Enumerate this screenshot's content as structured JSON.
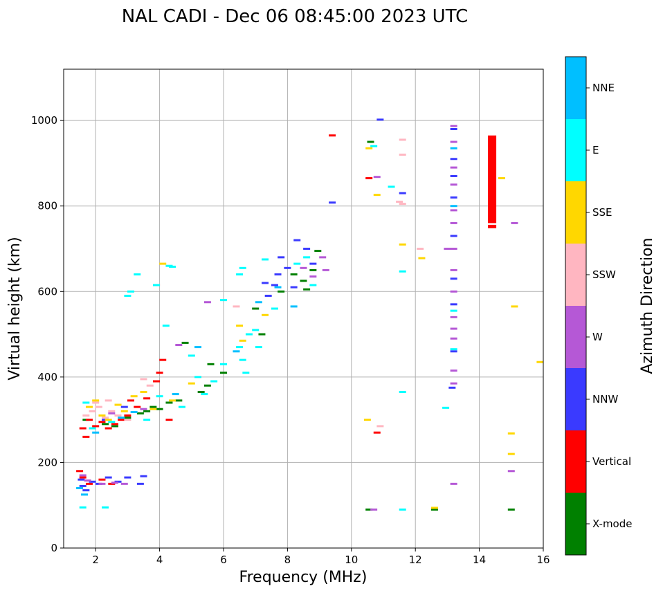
{
  "chart_data": {
    "type": "scatter",
    "title": "NAL CADI - Dec 06 08:45:00 2023 UTC",
    "xlabel": "Frequency (MHz)",
    "ylabel": "Virtual height (km)",
    "xlim": [
      1,
      16
    ],
    "ylim": [
      0,
      1120
    ],
    "xticks": [
      2,
      4,
      6,
      8,
      10,
      12,
      14,
      16
    ],
    "yticks": [
      0,
      200,
      400,
      600,
      800,
      1000
    ],
    "grid": true,
    "colorbar": {
      "title": "Azimuth Direction",
      "categories": [
        "X-mode",
        "Vertical",
        "NNW",
        "W",
        "SSW",
        "SSE",
        "E",
        "NNE"
      ],
      "colors": [
        "#008000",
        "#ff0000",
        "#3a3aff",
        "#b558d6",
        "#ffb6c1",
        "#ffd700",
        "#00ffff",
        "#00bfff"
      ]
    },
    "series": [
      {
        "name": "X-mode",
        "points": [
          [
            1.7,
            300
          ],
          [
            2.3,
            290
          ],
          [
            3.0,
            305
          ],
          [
            3.6,
            320
          ],
          [
            3.8,
            330
          ],
          [
            4.0,
            325
          ],
          [
            4.3,
            340
          ],
          [
            5.3,
            365
          ],
          [
            5.5,
            380
          ],
          [
            6.0,
            410
          ],
          [
            5.6,
            430
          ],
          [
            4.8,
            480
          ],
          [
            7.8,
            600
          ],
          [
            8.5,
            625
          ],
          [
            8.8,
            650
          ],
          [
            8.95,
            695
          ],
          [
            8.6,
            605
          ],
          [
            8.2,
            640
          ],
          [
            10.6,
            950
          ],
          [
            10.55,
            90
          ],
          [
            12.6,
            90
          ],
          [
            15.0,
            90
          ],
          [
            4.6,
            345
          ],
          [
            3.4,
            315
          ],
          [
            2.6,
            285
          ],
          [
            7.2,
            500
          ],
          [
            7.0,
            560
          ]
        ]
      },
      {
        "name": "Vertical",
        "points": [
          [
            1.6,
            280
          ],
          [
            1.8,
            300
          ],
          [
            2.0,
            285
          ],
          [
            2.2,
            295
          ],
          [
            2.4,
            280
          ],
          [
            2.6,
            290
          ],
          [
            3.0,
            310
          ],
          [
            3.3,
            330
          ],
          [
            3.6,
            350
          ],
          [
            3.9,
            390
          ],
          [
            4.1,
            440
          ],
          [
            4.0,
            410
          ],
          [
            4.3,
            300
          ],
          [
            1.5,
            180
          ],
          [
            1.6,
            165
          ],
          [
            1.8,
            150
          ],
          [
            2.2,
            160
          ],
          [
            2.5,
            150
          ],
          [
            9.4,
            965
          ],
          [
            10.55,
            865
          ],
          [
            10.8,
            270
          ],
          [
            2.8,
            300
          ],
          [
            3.1,
            345
          ],
          [
            1.7,
            260
          ]
        ]
      },
      {
        "name": "NNW",
        "points": [
          [
            1.55,
            160
          ],
          [
            1.6,
            145
          ],
          [
            1.7,
            135
          ],
          [
            1.9,
            155
          ],
          [
            2.1,
            150
          ],
          [
            2.4,
            165
          ],
          [
            2.7,
            155
          ],
          [
            3.0,
            165
          ],
          [
            3.5,
            168
          ],
          [
            3.4,
            150
          ],
          [
            7.4,
            590
          ],
          [
            7.6,
            615
          ],
          [
            7.7,
            640
          ],
          [
            7.8,
            680
          ],
          [
            8.0,
            655
          ],
          [
            8.3,
            720
          ],
          [
            8.6,
            700
          ],
          [
            8.8,
            665
          ],
          [
            8.2,
            610
          ],
          [
            9.4,
            808
          ],
          [
            10.9,
            1002
          ],
          [
            13.2,
            980
          ],
          [
            13.2,
            910
          ],
          [
            13.2,
            870
          ],
          [
            13.2,
            820
          ],
          [
            13.2,
            730
          ],
          [
            13.2,
            630
          ],
          [
            13.2,
            570
          ],
          [
            13.2,
            460
          ],
          [
            13.15,
            375
          ],
          [
            11.6,
            830
          ],
          [
            2.3,
            300
          ],
          [
            2.9,
            330
          ],
          [
            7.3,
            620
          ]
        ]
      },
      {
        "name": "W",
        "points": [
          [
            1.6,
            170
          ],
          [
            1.75,
            158
          ],
          [
            2.2,
            150
          ],
          [
            2.6,
            153
          ],
          [
            2.9,
            150
          ],
          [
            4.6,
            475
          ],
          [
            8.5,
            655
          ],
          [
            8.8,
            635
          ],
          [
            9.1,
            680
          ],
          [
            9.2,
            650
          ],
          [
            10.8,
            868
          ],
          [
            10.7,
            90
          ],
          [
            13.2,
            987
          ],
          [
            13.2,
            950
          ],
          [
            13.2,
            890
          ],
          [
            13.2,
            850
          ],
          [
            13.2,
            790
          ],
          [
            13.2,
            760
          ],
          [
            13.2,
            700
          ],
          [
            13.2,
            650
          ],
          [
            13.2,
            600
          ],
          [
            13.2,
            540
          ],
          [
            13.2,
            513
          ],
          [
            13.2,
            490
          ],
          [
            13.2,
            415
          ],
          [
            13.2,
            385
          ],
          [
            13.2,
            150
          ],
          [
            13.0,
            700
          ],
          [
            15.1,
            760
          ],
          [
            15.0,
            180
          ],
          [
            5.5,
            575
          ],
          [
            2.5,
            315
          ],
          [
            3.5,
            325
          ]
        ]
      },
      {
        "name": "SSW",
        "points": [
          [
            1.7,
            310
          ],
          [
            1.9,
            320
          ],
          [
            2.1,
            330
          ],
          [
            2.3,
            305
          ],
          [
            2.5,
            320
          ],
          [
            2.7,
            310
          ],
          [
            3.0,
            300
          ],
          [
            3.5,
            395
          ],
          [
            3.7,
            380
          ],
          [
            6.4,
            565
          ],
          [
            10.9,
            285
          ],
          [
            11.6,
            920
          ],
          [
            11.6,
            805
          ],
          [
            11.5,
            810
          ],
          [
            12.15,
            700
          ],
          [
            11.6,
            955
          ],
          [
            2.0,
            340
          ],
          [
            2.4,
            345
          ]
        ]
      },
      {
        "name": "SSE",
        "points": [
          [
            1.8,
            330
          ],
          [
            2.0,
            345
          ],
          [
            2.2,
            310
          ],
          [
            2.4,
            300
          ],
          [
            2.7,
            335
          ],
          [
            3.2,
            355
          ],
          [
            3.5,
            365
          ],
          [
            4.4,
            345
          ],
          [
            5.0,
            385
          ],
          [
            6.5,
            520
          ],
          [
            6.6,
            485
          ],
          [
            7.3,
            545
          ],
          [
            10.5,
            300
          ],
          [
            10.55,
            935
          ],
          [
            10.8,
            826
          ],
          [
            11.6,
            710
          ],
          [
            12.2,
            678
          ],
          [
            12.6,
            94
          ],
          [
            14.7,
            865
          ],
          [
            15.1,
            565
          ],
          [
            15.0,
            268
          ],
          [
            15.0,
            220
          ],
          [
            15.9,
            435
          ],
          [
            4.1,
            665
          ],
          [
            2.9,
            320
          ],
          [
            3.8,
            325
          ]
        ]
      },
      {
        "name": "E",
        "points": [
          [
            1.6,
            95
          ],
          [
            1.7,
            340
          ],
          [
            2.3,
            95
          ],
          [
            3.0,
            590
          ],
          [
            3.1,
            600
          ],
          [
            3.3,
            640
          ],
          [
            3.9,
            615
          ],
          [
            4.4,
            658
          ],
          [
            4.2,
            520
          ],
          [
            4.3,
            660
          ],
          [
            5.0,
            450
          ],
          [
            5.2,
            400
          ],
          [
            5.4,
            360
          ],
          [
            5.7,
            390
          ],
          [
            6.0,
            430
          ],
          [
            6.0,
            580
          ],
          [
            6.5,
            470
          ],
          [
            6.6,
            440
          ],
          [
            6.7,
            410
          ],
          [
            6.5,
            640
          ],
          [
            6.6,
            655
          ],
          [
            6.8,
            500
          ],
          [
            7.0,
            510
          ],
          [
            7.1,
            470
          ],
          [
            7.3,
            675
          ],
          [
            7.6,
            560
          ],
          [
            8.3,
            665
          ],
          [
            8.6,
            680
          ],
          [
            8.8,
            615
          ],
          [
            10.7,
            940
          ],
          [
            11.25,
            845
          ],
          [
            11.6,
            647
          ],
          [
            11.6,
            365
          ],
          [
            11.6,
            90
          ],
          [
            12.95,
            328
          ],
          [
            13.2,
            465
          ],
          [
            13.2,
            555
          ],
          [
            4.0,
            355
          ],
          [
            4.7,
            330
          ],
          [
            1.9,
            280
          ],
          [
            2.5,
            295
          ],
          [
            3.6,
            300
          ]
        ]
      },
      {
        "name": "NNE",
        "points": [
          [
            1.5,
            140
          ],
          [
            1.65,
            125
          ],
          [
            2.0,
            270
          ],
          [
            2.8,
            305
          ],
          [
            3.2,
            318
          ],
          [
            4.5,
            360
          ],
          [
            5.2,
            470
          ],
          [
            6.4,
            460
          ],
          [
            7.1,
            575
          ],
          [
            7.7,
            610
          ],
          [
            8.2,
            565
          ],
          [
            13.2,
            935
          ],
          [
            13.2,
            800
          ]
        ]
      }
    ],
    "bands": [
      {
        "name": "Vertical",
        "x": 14.4,
        "y_from": 760,
        "y_to": 965
      },
      {
        "name": "Vertical",
        "x": 14.4,
        "y_from": 748,
        "y_to": 756
      }
    ]
  }
}
